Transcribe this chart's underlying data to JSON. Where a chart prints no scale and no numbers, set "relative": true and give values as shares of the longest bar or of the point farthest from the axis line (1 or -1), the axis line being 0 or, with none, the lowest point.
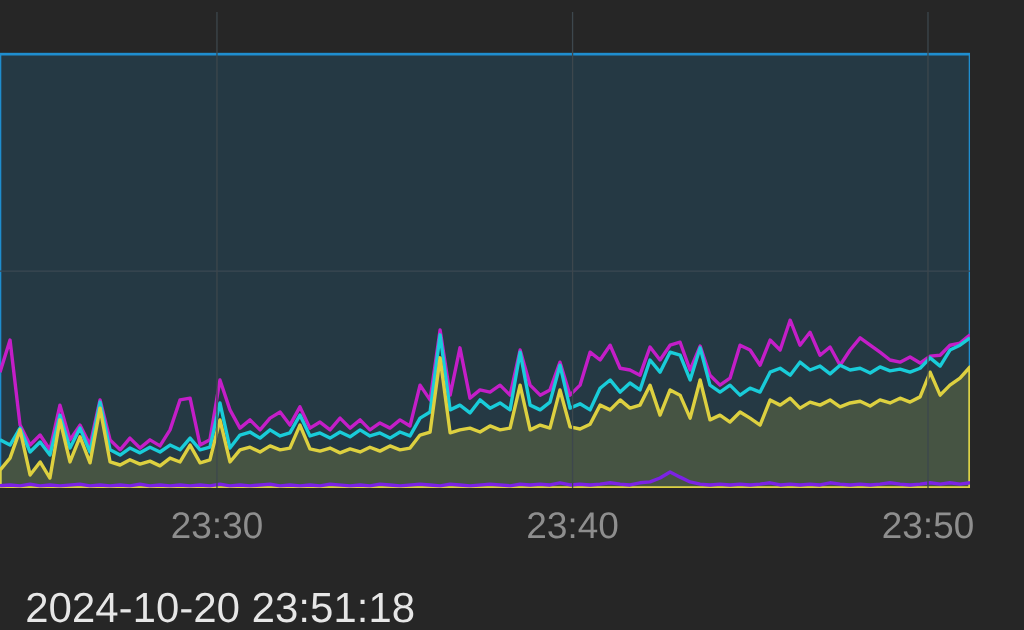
{
  "chart_data": {
    "type": "line",
    "relative": true,
    "grid": "x",
    "tick_labels": "x",
    "xlim": [
      23.3983,
      23.853
    ],
    "xticks": [
      {
        "value": 23.5,
        "label": "23:30"
      },
      {
        "value": 23.6667,
        "label": "23:40"
      },
      {
        "value": 23.8333,
        "label": "23:50"
      }
    ],
    "x": [
      23.3983,
      23.403,
      23.4077,
      23.4124,
      23.4171,
      23.4217,
      23.4264,
      23.4311,
      23.4358,
      23.4405,
      23.4452,
      23.4499,
      23.4546,
      23.4592,
      23.4639,
      23.4686,
      23.4733,
      23.478,
      23.4827,
      23.4874,
      23.4921,
      23.4967,
      23.5014,
      23.5061,
      23.5108,
      23.5155,
      23.5202,
      23.5249,
      23.5296,
      23.5342,
      23.5389,
      23.5436,
      23.5483,
      23.553,
      23.5577,
      23.5624,
      23.5671,
      23.5717,
      23.5764,
      23.5811,
      23.5858,
      23.5905,
      23.5952,
      23.5999,
      23.6046,
      23.6093,
      23.6139,
      23.6186,
      23.6233,
      23.628,
      23.6327,
      23.6374,
      23.6421,
      23.6468,
      23.6515,
      23.6561,
      23.6608,
      23.6655,
      23.6702,
      23.6749,
      23.6796,
      23.6843,
      23.689,
      23.6936,
      23.6983,
      23.703,
      23.7077,
      23.7124,
      23.7171,
      23.7218,
      23.7265,
      23.7311,
      23.7358,
      23.7405,
      23.7452,
      23.7499,
      23.7546,
      23.7593,
      23.764,
      23.7687,
      23.7733,
      23.778,
      23.7827,
      23.7874,
      23.7921,
      23.7968,
      23.8015,
      23.8062,
      23.8108,
      23.8155,
      23.8202,
      23.8249,
      23.8296,
      23.8343,
      23.839,
      23.8436,
      23.8483,
      23.853
    ],
    "series": [
      {
        "type": "area",
        "color": "#1f8ecf",
        "x": [
          23.3983,
          23.853
        ],
        "values": [
          1,
          1
        ]
      },
      {
        "color": "#c41ec8",
        "values": [
          0.267,
          0.341,
          0.145,
          0.099,
          0.122,
          0.088,
          0.191,
          0.111,
          0.145,
          0.099,
          0.203,
          0.111,
          0.088,
          0.115,
          0.092,
          0.111,
          0.097,
          0.134,
          0.203,
          0.207,
          0.099,
          0.111,
          0.249,
          0.18,
          0.138,
          0.157,
          0.134,
          0.161,
          0.175,
          0.145,
          0.187,
          0.138,
          0.152,
          0.134,
          0.161,
          0.138,
          0.157,
          0.134,
          0.15,
          0.138,
          0.157,
          0.143,
          0.237,
          0.203,
          0.364,
          0.214,
          0.323,
          0.207,
          0.226,
          0.221,
          0.237,
          0.214,
          0.318,
          0.237,
          0.214,
          0.226,
          0.29,
          0.214,
          0.237,
          0.313,
          0.295,
          0.329,
          0.276,
          0.272,
          0.26,
          0.325,
          0.295,
          0.329,
          0.336,
          0.272,
          0.327,
          0.26,
          0.237,
          0.253,
          0.329,
          0.318,
          0.283,
          0.341,
          0.318,
          0.387,
          0.329,
          0.359,
          0.306,
          0.325,
          0.283,
          0.318,
          0.346,
          0.329,
          0.313,
          0.295,
          0.29,
          0.302,
          0.288,
          0.304,
          0.306,
          0.329,
          0.334,
          0.353
        ]
      },
      {
        "color": "#19ccd9",
        "values": [
          0.111,
          0.099,
          0.138,
          0.083,
          0.106,
          0.076,
          0.168,
          0.092,
          0.138,
          0.083,
          0.198,
          0.088,
          0.076,
          0.092,
          0.081,
          0.094,
          0.083,
          0.099,
          0.088,
          0.115,
          0.088,
          0.094,
          0.196,
          0.092,
          0.122,
          0.129,
          0.115,
          0.134,
          0.12,
          0.127,
          0.168,
          0.12,
          0.127,
          0.115,
          0.129,
          0.118,
          0.134,
          0.12,
          0.127,
          0.115,
          0.129,
          0.12,
          0.161,
          0.175,
          0.353,
          0.18,
          0.191,
          0.173,
          0.203,
          0.184,
          0.196,
          0.18,
          0.313,
          0.191,
          0.18,
          0.198,
          0.283,
          0.184,
          0.194,
          0.18,
          0.23,
          0.249,
          0.221,
          0.242,
          0.226,
          0.295,
          0.267,
          0.313,
          0.306,
          0.249,
          0.323,
          0.237,
          0.221,
          0.237,
          0.214,
          0.23,
          0.221,
          0.267,
          0.276,
          0.26,
          0.29,
          0.272,
          0.281,
          0.263,
          0.283,
          0.272,
          0.276,
          0.265,
          0.279,
          0.27,
          0.274,
          0.267,
          0.276,
          0.3,
          0.281,
          0.318,
          0.329,
          0.346
        ]
      },
      {
        "type": "area",
        "color": "#ddd040",
        "values": [
          0.041,
          0.069,
          0.134,
          0.03,
          0.06,
          0.023,
          0.157,
          0.06,
          0.118,
          0.058,
          0.184,
          0.06,
          0.053,
          0.065,
          0.055,
          0.062,
          0.051,
          0.069,
          0.06,
          0.099,
          0.058,
          0.065,
          0.157,
          0.06,
          0.088,
          0.094,
          0.083,
          0.097,
          0.088,
          0.092,
          0.145,
          0.09,
          0.085,
          0.092,
          0.081,
          0.09,
          0.083,
          0.094,
          0.085,
          0.097,
          0.088,
          0.092,
          0.122,
          0.129,
          0.3,
          0.127,
          0.134,
          0.138,
          0.129,
          0.143,
          0.134,
          0.138,
          0.237,
          0.134,
          0.145,
          0.138,
          0.226,
          0.141,
          0.136,
          0.147,
          0.191,
          0.18,
          0.203,
          0.184,
          0.191,
          0.237,
          0.168,
          0.226,
          0.214,
          0.161,
          0.249,
          0.157,
          0.168,
          0.152,
          0.175,
          0.161,
          0.145,
          0.203,
          0.191,
          0.207,
          0.184,
          0.198,
          0.191,
          0.203,
          0.187,
          0.196,
          0.2,
          0.189,
          0.203,
          0.196,
          0.207,
          0.198,
          0.21,
          0.267,
          0.214,
          0.237,
          0.253,
          0.279
        ]
      },
      {
        "color": "#7c22e4",
        "values": [
          0.005,
          0.007,
          0.005,
          0.009,
          0.005,
          0.007,
          0.005,
          0.007,
          0.009,
          0.005,
          0.007,
          0.005,
          0.007,
          0.005,
          0.009,
          0.005,
          0.007,
          0.005,
          0.007,
          0.005,
          0.007,
          0.005,
          0.009,
          0.005,
          0.007,
          0.005,
          0.007,
          0.009,
          0.005,
          0.007,
          0.005,
          0.007,
          0.005,
          0.009,
          0.007,
          0.005,
          0.007,
          0.005,
          0.009,
          0.007,
          0.005,
          0.007,
          0.009,
          0.007,
          0.005,
          0.009,
          0.007,
          0.005,
          0.007,
          0.009,
          0.007,
          0.005,
          0.009,
          0.007,
          0.009,
          0.007,
          0.012,
          0.007,
          0.009,
          0.007,
          0.009,
          0.012,
          0.009,
          0.007,
          0.012,
          0.014,
          0.023,
          0.037,
          0.025,
          0.014,
          0.009,
          0.007,
          0.009,
          0.007,
          0.009,
          0.007,
          0.009,
          0.012,
          0.007,
          0.009,
          0.007,
          0.009,
          0.007,
          0.012,
          0.009,
          0.007,
          0.009,
          0.007,
          0.009,
          0.012,
          0.009,
          0.007,
          0.009,
          0.012,
          0.009,
          0.012,
          0.009,
          0.012
        ]
      }
    ],
    "ref_lines": [
      {
        "axis": "y",
        "value": 0.5,
        "color": "#3b4952"
      }
    ],
    "annotations": [
      "2024-10-20 23:51:18"
    ]
  }
}
